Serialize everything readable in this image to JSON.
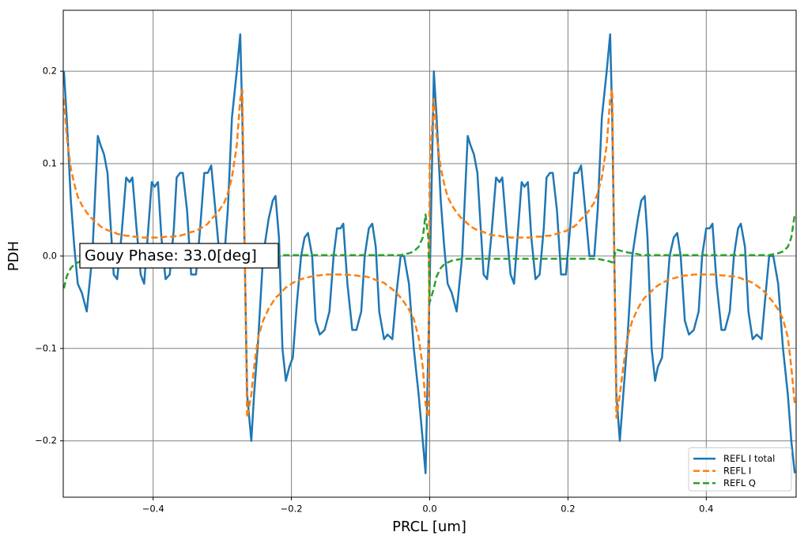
{
  "chart_data": {
    "type": "line",
    "xlabel": "PRCL [um]",
    "ylabel": "PDH",
    "annotation": "Gouy Phase: 33.0[deg]",
    "xlim": [
      -0.53,
      0.53
    ],
    "ylim": [
      -0.261,
      0.266
    ],
    "xticks": [
      {
        "value": -0.4,
        "label": "−0.4"
      },
      {
        "value": -0.2,
        "label": "−0.2"
      },
      {
        "value": 0,
        "label": "0.0"
      },
      0.2,
      0.4
    ],
    "yticks": [
      {
        "value": -0.2,
        "label": "−0.2"
      },
      {
        "value": -0.1,
        "label": "−0.1"
      },
      {
        "value": 0,
        "label": "0.0"
      },
      0.1,
      0.2
    ],
    "grid": true,
    "legend": "lower right",
    "x": [
      -0.529,
      -0.525,
      -0.519,
      -0.514,
      -0.509,
      -0.503,
      -0.496,
      -0.488,
      -0.48,
      -0.476,
      -0.471,
      -0.466,
      -0.462,
      -0.457,
      -0.452,
      -0.446,
      -0.439,
      -0.434,
      -0.43,
      -0.424,
      -0.418,
      -0.413,
      -0.407,
      -0.402,
      -0.398,
      -0.393,
      -0.388,
      -0.382,
      -0.376,
      -0.37,
      -0.366,
      -0.361,
      -0.357,
      -0.351,
      -0.345,
      -0.338,
      -0.332,
      -0.326,
      -0.321,
      -0.316,
      -0.31,
      -0.304,
      -0.297,
      -0.292,
      -0.286,
      -0.279,
      -0.274,
      -0.271,
      -0.264,
      -0.258,
      -0.254,
      -0.248,
      -0.241,
      -0.233,
      -0.227,
      -0.223,
      -0.218,
      -0.213,
      -0.208,
      -0.203,
      -0.198,
      -0.192,
      -0.186,
      -0.181,
      -0.176,
      -0.17,
      -0.165,
      -0.159,
      -0.152,
      -0.145,
      -0.139,
      -0.134,
      -0.129,
      -0.125,
      -0.119,
      -0.112,
      -0.106,
      -0.099,
      -0.094,
      -0.088,
      -0.083,
      -0.078,
      -0.073,
      -0.066,
      -0.061,
      -0.054,
      -0.048,
      -0.042,
      -0.037,
      -0.03,
      -0.023,
      -0.016,
      -0.01,
      -0.006,
      -0.002,
      0.0,
      0.006,
      0.01,
      0.016,
      0.021,
      0.026,
      0.032,
      0.039,
      0.047,
      0.055,
      0.059,
      0.064,
      0.069,
      0.073,
      0.078,
      0.083,
      0.089,
      0.096,
      0.101,
      0.105,
      0.111,
      0.117,
      0.122,
      0.128,
      0.133,
      0.137,
      0.142,
      0.147,
      0.153,
      0.159,
      0.165,
      0.169,
      0.174,
      0.178,
      0.184,
      0.19,
      0.197,
      0.203,
      0.209,
      0.214,
      0.219,
      0.225,
      0.231,
      0.238,
      0.243,
      0.249,
      0.256,
      0.261,
      0.264,
      0.27,
      0.275,
      0.28,
      0.286,
      0.293,
      0.301,
      0.306,
      0.311,
      0.315,
      0.321,
      0.326,
      0.33,
      0.336,
      0.342,
      0.347,
      0.353,
      0.358,
      0.363,
      0.369,
      0.375,
      0.382,
      0.389,
      0.394,
      0.4,
      0.405,
      0.409,
      0.415,
      0.422,
      0.427,
      0.434,
      0.44,
      0.446,
      0.45,
      0.456,
      0.461,
      0.467,
      0.473,
      0.48,
      0.486,
      0.491,
      0.497,
      0.504,
      0.511,
      0.518,
      0.523,
      0.528
    ],
    "series": [
      {
        "name": "REFL I total",
        "color": "#1f77b4",
        "linestyle": "solid",
        "values": [
          0.2,
          0.15,
          0.06,
          0.01,
          -0.03,
          -0.04,
          -0.06,
          0,
          0.13,
          0.12,
          0.11,
          0.09,
          0.04,
          -0.02,
          -0.025,
          0.02,
          0.085,
          0.08,
          0.085,
          0.03,
          -0.02,
          -0.03,
          0.03,
          0.08,
          0.075,
          0.08,
          0.02,
          -0.025,
          -0.02,
          0.03,
          0.085,
          0.09,
          0.09,
          0.05,
          -0.02,
          -0.02,
          0.03,
          0.09,
          0.09,
          0.098,
          0.05,
          0,
          0,
          0.05,
          0.15,
          0.2,
          0.24,
          0.15,
          -0.15,
          -0.2,
          -0.15,
          -0.09,
          0,
          0.04,
          0.06,
          0.065,
          0.02,
          -0.1,
          -0.135,
          -0.12,
          -0.11,
          -0.05,
          0,
          0.02,
          0.025,
          0,
          -0.07,
          -0.085,
          -0.08,
          -0.06,
          0,
          0.03,
          0.03,
          0.035,
          -0.03,
          -0.08,
          -0.08,
          -0.06,
          0,
          0.03,
          0.035,
          0.01,
          -0.06,
          -0.09,
          -0.085,
          -0.09,
          -0.04,
          0,
          0,
          -0.03,
          -0.1,
          -0.15,
          -0.2,
          -0.235,
          -0.1,
          -0.03,
          0.2,
          0.15,
          0.06,
          0.01,
          -0.03,
          -0.04,
          -0.06,
          0,
          0.13,
          0.12,
          0.11,
          0.09,
          0.04,
          -0.02,
          -0.025,
          0.02,
          0.085,
          0.08,
          0.085,
          0.03,
          -0.02,
          -0.03,
          0.03,
          0.08,
          0.075,
          0.08,
          0.02,
          -0.025,
          -0.02,
          0.03,
          0.085,
          0.09,
          0.09,
          0.05,
          -0.02,
          -0.02,
          0.03,
          0.09,
          0.09,
          0.098,
          0.05,
          0,
          0,
          0.05,
          0.15,
          0.2,
          0.24,
          0.15,
          -0.15,
          -0.2,
          -0.15,
          -0.09,
          0,
          0.04,
          0.06,
          0.065,
          0.02,
          -0.1,
          -0.135,
          -0.12,
          -0.11,
          -0.05,
          0,
          0.02,
          0.025,
          0,
          -0.07,
          -0.085,
          -0.08,
          -0.06,
          0,
          0.03,
          0.03,
          0.035,
          -0.03,
          -0.08,
          -0.08,
          -0.06,
          0,
          0.03,
          0.035,
          0.01,
          -0.06,
          -0.09,
          -0.085,
          -0.09,
          -0.04,
          0,
          0,
          -0.03,
          -0.1,
          -0.15,
          -0.2,
          -0.235
        ]
      },
      {
        "name": "REFL I",
        "color": "#ff7f0e",
        "linestyle": "dashed",
        "values": [
          0.17,
          0.13,
          0.095,
          0.078,
          0.064,
          0.055,
          0.047,
          0.04,
          0.035,
          0.032,
          0.03,
          0.028,
          0.027,
          0.026,
          0.024,
          0.023,
          0.022,
          0.022,
          0.021,
          0.021,
          0.02,
          0.02,
          0.02,
          0.02,
          0.02,
          0.02,
          0.02,
          0.021,
          0.021,
          0.021,
          0.022,
          0.022,
          0.023,
          0.024,
          0.026,
          0.027,
          0.03,
          0.032,
          0.035,
          0.04,
          0.044,
          0.05,
          0.058,
          0.068,
          0.085,
          0.12,
          0.17,
          0.18,
          -0.175,
          -0.15,
          -0.12,
          -0.088,
          -0.07,
          -0.057,
          -0.05,
          -0.045,
          -0.042,
          -0.038,
          -0.034,
          -0.032,
          -0.029,
          -0.027,
          -0.025,
          -0.024,
          -0.023,
          -0.022,
          -0.021,
          -0.021,
          -0.02,
          -0.02,
          -0.02,
          -0.02,
          -0.02,
          -0.02,
          -0.02,
          -0.021,
          -0.021,
          -0.022,
          -0.022,
          -0.023,
          -0.024,
          -0.026,
          -0.027,
          -0.029,
          -0.032,
          -0.036,
          -0.04,
          -0.045,
          -0.05,
          -0.058,
          -0.068,
          -0.088,
          -0.12,
          -0.16,
          -0.175,
          0.1,
          0.17,
          0.13,
          0.095,
          0.078,
          0.064,
          0.055,
          0.047,
          0.04,
          0.035,
          0.032,
          0.03,
          0.028,
          0.027,
          0.026,
          0.024,
          0.023,
          0.022,
          0.022,
          0.021,
          0.021,
          0.02,
          0.02,
          0.02,
          0.02,
          0.02,
          0.02,
          0.02,
          0.021,
          0.021,
          0.021,
          0.022,
          0.022,
          0.023,
          0.024,
          0.026,
          0.027,
          0.03,
          0.032,
          0.035,
          0.04,
          0.044,
          0.05,
          0.058,
          0.068,
          0.085,
          0.12,
          0.17,
          0.18,
          -0.175,
          -0.15,
          -0.12,
          -0.088,
          -0.07,
          -0.057,
          -0.05,
          -0.045,
          -0.042,
          -0.038,
          -0.034,
          -0.032,
          -0.029,
          -0.027,
          -0.025,
          -0.024,
          -0.023,
          -0.022,
          -0.021,
          -0.021,
          -0.02,
          -0.02,
          -0.02,
          -0.02,
          -0.02,
          -0.02,
          -0.02,
          -0.021,
          -0.021,
          -0.022,
          -0.022,
          -0.023,
          -0.024,
          -0.026,
          -0.027,
          -0.029,
          -0.032,
          -0.036,
          -0.04,
          -0.045,
          -0.05,
          -0.058,
          -0.068,
          -0.088,
          -0.12,
          -0.16
        ]
      },
      {
        "name": "REFL Q",
        "color": "#2ca02c",
        "linestyle": "dashed",
        "values": [
          -0.035,
          -0.022,
          -0.013,
          -0.009,
          -0.007,
          -0.005,
          -0.004,
          -0.003,
          -0.003,
          -0.003,
          -0.003,
          -0.003,
          -0.003,
          -0.003,
          -0.003,
          -0.003,
          -0.003,
          -0.003,
          -0.003,
          -0.003,
          -0.003,
          -0.003,
          -0.003,
          -0.003,
          -0.003,
          -0.003,
          -0.003,
          -0.003,
          -0.003,
          -0.003,
          -0.003,
          -0.003,
          -0.003,
          -0.003,
          -0.003,
          -0.003,
          -0.003,
          -0.003,
          -0.003,
          -0.003,
          -0.003,
          -0.003,
          -0.003,
          -0.003,
          -0.004,
          -0.005,
          -0.006,
          -0.007,
          0.007,
          0.006,
          0.005,
          0.004,
          0.003,
          0.002,
          0.001,
          0.001,
          0.001,
          0.001,
          0.001,
          0.001,
          0.001,
          0.001,
          0.001,
          0.001,
          0.001,
          0.001,
          0.001,
          0.001,
          0.001,
          0.001,
          0.001,
          0.001,
          0.001,
          0.001,
          0.001,
          0.001,
          0.001,
          0.001,
          0.001,
          0.001,
          0.001,
          0.001,
          0.001,
          0.001,
          0.001,
          0.001,
          0.001,
          0.001,
          0.002,
          0.003,
          0.005,
          0.01,
          0.02,
          0.045,
          0.02,
          -0.05,
          -0.035,
          -0.022,
          -0.013,
          -0.009,
          -0.007,
          -0.005,
          -0.004,
          -0.003,
          -0.003,
          -0.003,
          -0.003,
          -0.003,
          -0.003,
          -0.003,
          -0.003,
          -0.003,
          -0.003,
          -0.003,
          -0.003,
          -0.003,
          -0.003,
          -0.003,
          -0.003,
          -0.003,
          -0.003,
          -0.003,
          -0.003,
          -0.003,
          -0.003,
          -0.003,
          -0.003,
          -0.003,
          -0.003,
          -0.003,
          -0.003,
          -0.003,
          -0.003,
          -0.003,
          -0.003,
          -0.003,
          -0.003,
          -0.003,
          -0.003,
          -0.003,
          -0.004,
          -0.005,
          -0.006,
          -0.007,
          0.007,
          0.006,
          0.005,
          0.004,
          0.003,
          0.002,
          0.001,
          0.001,
          0.001,
          0.001,
          0.001,
          0.001,
          0.001,
          0.001,
          0.001,
          0.001,
          0.001,
          0.001,
          0.001,
          0.001,
          0.001,
          0.001,
          0.001,
          0.001,
          0.001,
          0.001,
          0.001,
          0.001,
          0.001,
          0.001,
          0.001,
          0.001,
          0.001,
          0.001,
          0.001,
          0.001,
          0.001,
          0.001,
          0.001,
          0.001,
          0.002,
          0.003,
          0.005,
          0.01,
          0.02,
          0.045
        ]
      }
    ]
  }
}
